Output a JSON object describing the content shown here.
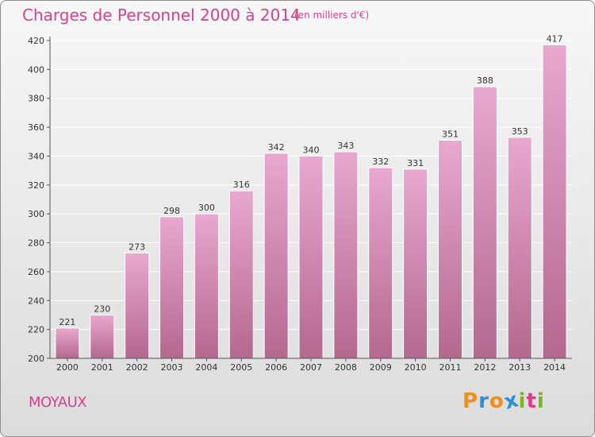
{
  "title": "Charges de Personnel 2000 à 2014",
  "unit_note": "(en milliers d'€)",
  "city": "MOYAUX",
  "logo": {
    "text": "Proxiti",
    "letters": [
      "P",
      "r",
      "o",
      "x",
      "i",
      "t",
      "i"
    ],
    "colors": [
      "#f28c1b",
      "#2d8fd5",
      "#f28c1b",
      "#2d8fd5",
      "#7ab51d",
      "#e03a8c",
      "#7ab51d"
    ]
  },
  "colors": {
    "title": "#d4418e",
    "bar_top": "#e8a8cf",
    "bar_bottom": "#b4688f",
    "axis_text": "#333333",
    "grid": "#ffffff"
  },
  "chart_data": {
    "type": "bar",
    "categories": [
      "2000",
      "2001",
      "2002",
      "2003",
      "2004",
      "2005",
      "2006",
      "2007",
      "2008",
      "2009",
      "2010",
      "2011",
      "2012",
      "2013",
      "2014"
    ],
    "values": [
      221,
      230,
      273,
      298,
      300,
      316,
      342,
      340,
      343,
      332,
      331,
      351,
      388,
      353,
      417
    ],
    "data_labels": [
      "221",
      "230",
      "273",
      "298",
      "300",
      "316",
      "342",
      "340",
      "343",
      "332",
      "331",
      "351",
      "388",
      "353",
      "417"
    ],
    "yticks": [
      200,
      220,
      240,
      260,
      280,
      300,
      320,
      340,
      360,
      380,
      400,
      420
    ],
    "ylim": [
      200,
      420
    ],
    "grid": true,
    "title": "Charges de Personnel 2000 à 2014",
    "xlabel": "",
    "ylabel": ""
  }
}
